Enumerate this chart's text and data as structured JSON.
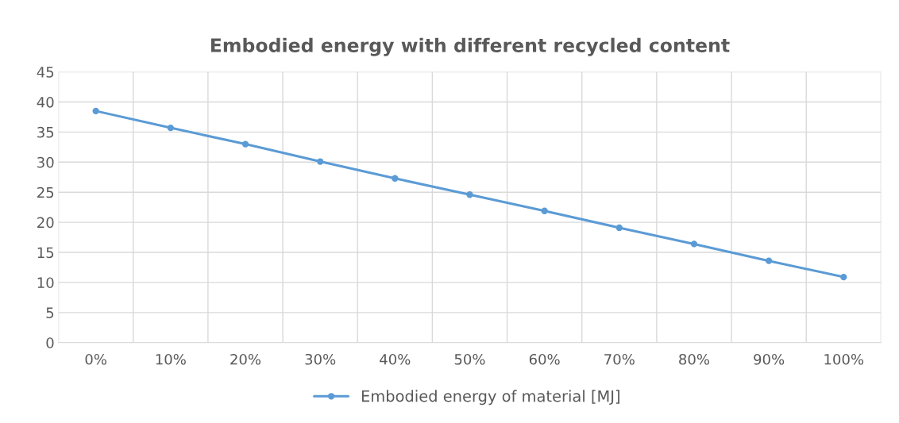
{
  "chart_data": {
    "type": "line",
    "title": "Embodied energy with different recycled content",
    "categories": [
      "0%",
      "10%",
      "20%",
      "30%",
      "40%",
      "50%",
      "60%",
      "70%",
      "80%",
      "90%",
      "100%"
    ],
    "series": [
      {
        "name": "Embodied energy of material [MJ]",
        "color": "#5b9bd5",
        "values": [
          38.5,
          35.7,
          33.0,
          30.1,
          27.3,
          24.6,
          21.9,
          19.1,
          16.4,
          13.6,
          10.9
        ]
      }
    ],
    "ylim": [
      0,
      45
    ],
    "yticks": [
      0,
      5,
      10,
      15,
      20,
      25,
      30,
      35,
      40,
      45
    ],
    "grid": true,
    "legend": "bottom",
    "marker": "circle",
    "line_style": "solid"
  }
}
